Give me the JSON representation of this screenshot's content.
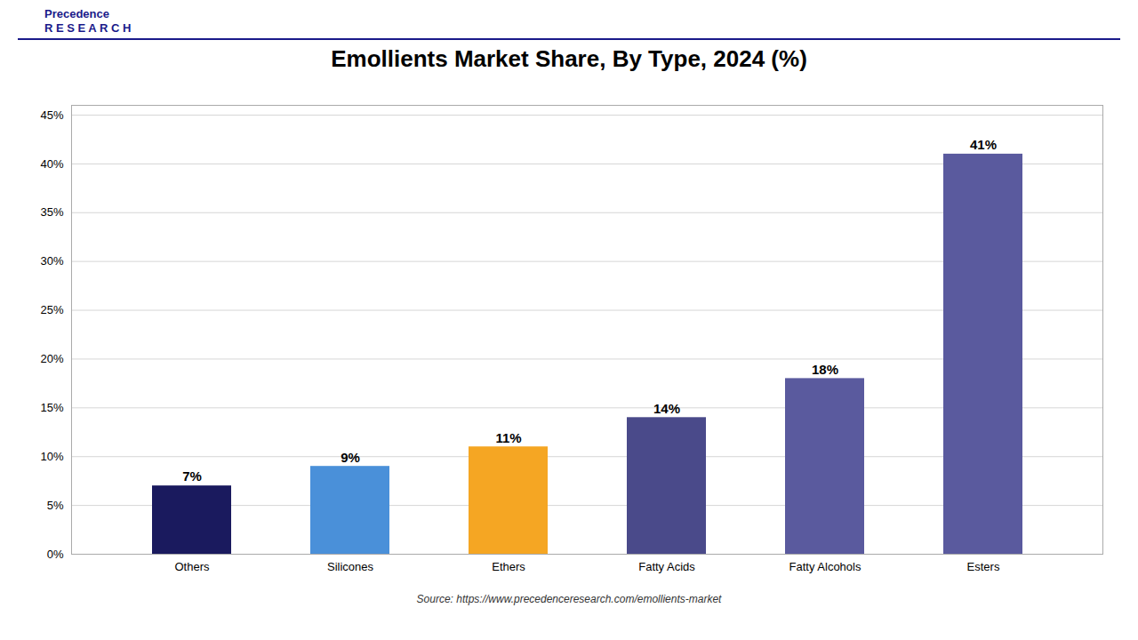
{
  "chart_data": {
    "type": "bar",
    "title": "Emollients Market Share, By Type, 2024 (%)",
    "categories": [
      "Others",
      "Silicones",
      "Ethers",
      "Fatty Acids",
      "Fatty Alcohols",
      "Esters"
    ],
    "values": [
      7,
      9,
      11,
      14,
      18,
      41
    ],
    "value_labels": [
      "7%",
      "9%",
      "11%",
      "14%",
      "18%",
      "41%"
    ],
    "colors": [
      "#1a1a5e",
      "#4a90d9",
      "#f5a623",
      "#4a4a8a",
      "#5a5a9e",
      "#5a5a9e"
    ],
    "ylim": [
      0,
      46
    ],
    "yticks": [
      {
        "value": 0,
        "label": "0%"
      },
      {
        "value": 5,
        "label": "5%"
      },
      {
        "value": 10,
        "label": "10%"
      },
      {
        "value": 15,
        "label": "15%"
      },
      {
        "value": 20,
        "label": "20%"
      },
      {
        "value": 25,
        "label": "25%"
      },
      {
        "value": 30,
        "label": "30%"
      },
      {
        "value": 35,
        "label": "35%"
      },
      {
        "value": 40,
        "label": "40%"
      },
      {
        "value": 45,
        "label": "45%"
      }
    ],
    "grid": true,
    "data_labels": true,
    "annotations": [
      "Precedence\nR E S E A R C H",
      "Source: https://www.precedenceresearch.com/emollients-market"
    ]
  }
}
